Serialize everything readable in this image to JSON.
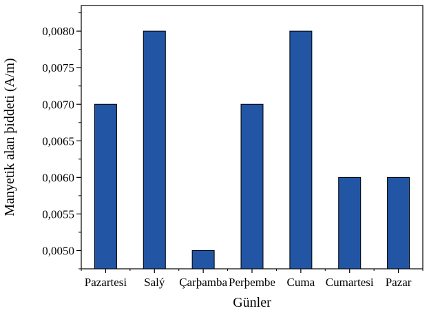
{
  "chart_data": {
    "type": "bar",
    "title": "",
    "xlabel": "Günler",
    "ylabel": "Manyetik alan þiddeti (A/m)",
    "categories": [
      "Pazartesi",
      "Salý",
      "Çarþamba",
      "Perþembe",
      "Cuma",
      "Cumartesi",
      "Pazar"
    ],
    "values": [
      0.007,
      0.008,
      0.005,
      0.007,
      0.008,
      0.006,
      0.006
    ],
    "ylim": [
      0.00475,
      0.00835
    ],
    "yticks": [
      0.005,
      0.0055,
      0.006,
      0.0065,
      0.007,
      0.0075,
      0.008
    ],
    "ytick_labels": [
      "0,0050",
      "0,0055",
      "0,0060",
      "0,0065",
      "0,0070",
      "0,0075",
      "0,0080"
    ],
    "bar_color": "#2255a4",
    "bar_edge_color": "#000000",
    "grid": false,
    "legend": "none"
  }
}
